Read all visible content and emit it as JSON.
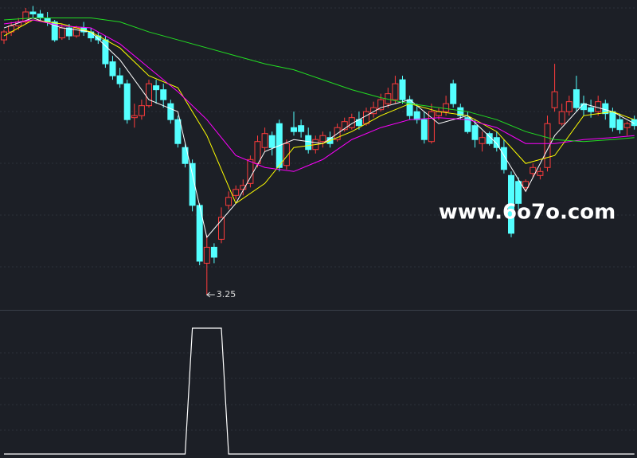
{
  "chart_data": {
    "type": "candlestick",
    "ylim": [
      3.06,
      4.61
    ],
    "up_color": "#ff3c3c",
    "down_color": "#54ffff",
    "open": [
      4.41,
      4.45,
      4.48,
      4.5,
      4.55,
      4.54,
      4.52,
      4.5,
      4.42,
      4.47,
      4.43,
      4.47,
      4.45,
      4.43,
      4.41,
      4.3,
      4.23,
      4.19,
      4.02,
      4.03,
      4.08,
      4.18,
      4.16,
      4.09,
      4.01,
      3.87,
      3.79,
      3.58,
      3.29,
      3.37,
      3.41,
      3.58,
      3.63,
      3.66,
      3.69,
      3.79,
      3.87,
      3.93,
      3.99,
      3.78,
      3.97,
      3.98,
      3.93,
      3.86,
      3.9,
      3.92,
      3.91,
      3.96,
      3.97,
      4.01,
      3.99,
      4.04,
      4.06,
      4.09,
      4.11,
      4.21,
      4.11,
      4.05,
      4.01,
      3.9,
      4.03,
      4.05,
      4.19,
      4.07,
      4.02,
      3.98,
      3.89,
      3.94,
      3.92,
      3.87,
      3.73,
      3.7,
      3.67,
      3.74,
      3.73,
      3.77,
      4.07,
      3.99,
      4.05,
      4.16,
      4.09,
      4.07,
      4.05,
      4.09,
      4.05,
      4.01,
      3.97,
      4.01
    ],
    "high": [
      4.46,
      4.5,
      4.52,
      4.57,
      4.58,
      4.56,
      4.55,
      4.51,
      4.49,
      4.49,
      4.48,
      4.5,
      4.47,
      4.45,
      4.43,
      4.33,
      4.27,
      4.21,
      4.09,
      4.11,
      4.21,
      4.21,
      4.19,
      4.11,
      4.03,
      3.89,
      3.81,
      3.59,
      3.43,
      3.39,
      3.57,
      3.65,
      3.68,
      3.71,
      3.83,
      3.93,
      3.97,
      3.95,
      4.01,
      3.91,
      4.05,
      4.01,
      3.97,
      3.93,
      3.95,
      3.95,
      3.99,
      4.02,
      4.04,
      4.05,
      4.07,
      4.1,
      4.14,
      4.17,
      4.23,
      4.23,
      4.13,
      4.09,
      4.05,
      4.09,
      4.07,
      4.13,
      4.21,
      4.09,
      4.05,
      4.01,
      3.95,
      3.95,
      3.95,
      3.91,
      3.75,
      3.72,
      3.71,
      3.79,
      3.77,
      4.03,
      4.29,
      4.09,
      4.13,
      4.23,
      4.13,
      4.11,
      4.13,
      4.11,
      4.07,
      4.04,
      4.0,
      4.03
    ],
    "low": [
      4.39,
      4.43,
      4.46,
      4.49,
      4.52,
      4.51,
      4.48,
      4.4,
      4.41,
      4.41,
      4.42,
      4.43,
      4.4,
      4.39,
      4.27,
      4.21,
      4.17,
      3.99,
      3.97,
      4.01,
      4.07,
      4.09,
      4.07,
      3.99,
      3.87,
      3.77,
      3.55,
      3.28,
      3.25,
      3.29,
      3.39,
      3.56,
      3.61,
      3.63,
      3.67,
      3.77,
      3.85,
      3.83,
      3.75,
      3.76,
      3.93,
      3.92,
      3.84,
      3.84,
      3.87,
      3.87,
      3.9,
      3.95,
      3.96,
      3.96,
      3.98,
      4.02,
      4.05,
      4.07,
      4.09,
      4.09,
      4.01,
      3.99,
      3.89,
      3.89,
      4.01,
      4.03,
      4.07,
      4.01,
      3.94,
      3.87,
      3.85,
      3.88,
      3.85,
      3.74,
      3.42,
      3.56,
      3.65,
      3.72,
      3.71,
      3.75,
      4.05,
      3.98,
      4.03,
      4.05,
      4.03,
      4.02,
      4.03,
      4.01,
      3.95,
      3.94,
      3.93,
      3.96
    ],
    "close": [
      4.45,
      4.48,
      4.5,
      4.55,
      4.54,
      4.52,
      4.5,
      4.41,
      4.47,
      4.43,
      4.47,
      4.45,
      4.42,
      4.41,
      4.29,
      4.23,
      4.19,
      4.01,
      4.03,
      4.08,
      4.19,
      4.16,
      4.11,
      4.01,
      3.89,
      3.79,
      3.58,
      3.3,
      3.37,
      3.32,
      3.52,
      3.62,
      3.66,
      3.68,
      3.81,
      3.9,
      3.94,
      3.87,
      3.77,
      3.89,
      3.95,
      3.95,
      3.86,
      3.91,
      3.93,
      3.89,
      3.97,
      4.0,
      4.02,
      3.98,
      4.05,
      4.07,
      4.11,
      4.14,
      4.19,
      4.11,
      4.03,
      4.01,
      3.91,
      4.05,
      4.05,
      4.09,
      4.09,
      4.03,
      3.95,
      3.91,
      3.92,
      3.89,
      3.87,
      3.76,
      3.44,
      3.59,
      3.7,
      3.77,
      3.75,
      3.99,
      4.15,
      4.05,
      4.1,
      4.07,
      4.06,
      4.05,
      4.1,
      4.04,
      3.97,
      3.96,
      3.99,
      3.98
    ],
    "lines": [
      {
        "color": "#ffffff",
        "x": [
          0,
          4,
          8,
          12,
          16,
          20,
          24,
          28,
          32,
          36,
          40,
          44,
          48,
          52,
          56,
          60,
          64,
          68,
          72,
          76,
          80,
          84,
          87
        ],
        "values": [
          4.47,
          4.52,
          4.47,
          4.45,
          4.31,
          4.11,
          4.05,
          3.42,
          3.59,
          3.85,
          3.91,
          3.89,
          3.99,
          4.07,
          4.11,
          3.99,
          4.03,
          3.89,
          3.65,
          3.93,
          4.09,
          4.05,
          3.99
        ]
      },
      {
        "color": "#ffff00",
        "x": [
          0,
          4,
          8,
          12,
          16,
          20,
          24,
          28,
          32,
          36,
          40,
          44,
          48,
          52,
          56,
          60,
          64,
          68,
          72,
          76,
          80,
          84,
          87
        ],
        "values": [
          4.43,
          4.51,
          4.49,
          4.45,
          4.37,
          4.23,
          4.17,
          3.93,
          3.59,
          3.69,
          3.87,
          3.89,
          3.95,
          4.03,
          4.09,
          4.05,
          4.03,
          3.95,
          3.79,
          3.83,
          4.03,
          4.05,
          4.01
        ]
      },
      {
        "color": "#ff00ff",
        "x": [
          0,
          4,
          8,
          12,
          16,
          20,
          24,
          28,
          32,
          36,
          40,
          44,
          48,
          52,
          56,
          60,
          64,
          68,
          72,
          76,
          80,
          84,
          87
        ],
        "values": [
          4.49,
          4.51,
          4.48,
          4.47,
          4.39,
          4.27,
          4.15,
          4.01,
          3.83,
          3.77,
          3.75,
          3.81,
          3.91,
          3.97,
          4.01,
          4.02,
          4.01,
          3.97,
          3.89,
          3.89,
          3.91,
          3.92,
          3.93
        ]
      },
      {
        "color": "#22dd22",
        "x": [
          0,
          4,
          8,
          12,
          16,
          20,
          24,
          28,
          32,
          36,
          40,
          44,
          48,
          52,
          56,
          60,
          64,
          68,
          72,
          76,
          80,
          84,
          87
        ],
        "values": [
          4.51,
          4.52,
          4.52,
          4.52,
          4.5,
          4.45,
          4.41,
          4.37,
          4.33,
          4.29,
          4.26,
          4.21,
          4.16,
          4.12,
          4.09,
          4.07,
          4.05,
          4.01,
          3.95,
          3.91,
          3.9,
          3.91,
          3.92
        ]
      }
    ],
    "annotation": {
      "index": 28,
      "text": "3.25"
    },
    "indicator": {
      "color": "#ffffff",
      "ylim": [
        0,
        1
      ],
      "values": [
        0,
        0,
        0,
        0,
        0,
        0,
        0,
        0,
        0,
        0,
        0,
        0,
        0,
        0,
        0,
        0,
        0,
        0,
        0,
        0,
        0,
        0,
        0,
        0,
        0,
        0,
        1,
        1,
        1,
        1,
        1,
        0,
        0,
        0,
        0,
        0,
        0,
        0,
        0,
        0,
        0,
        0,
        0,
        0,
        0,
        0,
        0,
        0,
        0,
        0,
        0,
        0,
        0,
        0,
        0,
        0,
        0,
        0,
        0,
        0,
        0,
        0,
        0,
        0,
        0,
        0,
        0,
        0,
        0,
        0,
        0,
        0,
        0,
        0,
        0,
        0,
        0,
        0,
        0,
        0,
        0,
        0,
        0,
        0,
        0,
        0,
        0,
        0
      ]
    },
    "watermark": "www.6o7o.com"
  }
}
